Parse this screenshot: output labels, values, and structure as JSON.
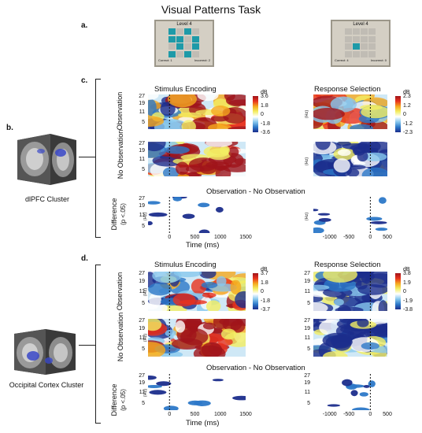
{
  "title": "Visual Patterns Task",
  "panel_labels": {
    "a": "a.",
    "b": "b.",
    "c": "c.",
    "d": "d."
  },
  "task_screens": [
    {
      "level_label": "Level 4",
      "correct_label": "Correct: 1",
      "incorrect_label": "Incorrect: 2",
      "grid": [
        [
          1,
          0,
          1,
          0
        ],
        [
          1,
          1,
          0,
          1
        ],
        [
          0,
          1,
          0,
          1
        ],
        [
          1,
          0,
          1,
          0
        ]
      ]
    },
    {
      "level_label": "Level 4",
      "correct_label": "Correct: 4",
      "incorrect_label": "Incorrect: 0",
      "grid": [
        [
          0,
          0,
          0,
          0
        ],
        [
          0,
          0,
          0,
          0
        ],
        [
          0,
          1,
          0,
          0
        ],
        [
          0,
          0,
          0,
          0
        ]
      ]
    }
  ],
  "clusters": {
    "c": "dlPFC Cluster",
    "d": "Occipital Cortex Cluster"
  },
  "row_labels": {
    "observation": "Observation",
    "no_observation": "No Observation",
    "difference": "Difference",
    "difference_sub": "(p <.05)"
  },
  "column_titles": {
    "stimulus": "Stimulus Encoding",
    "response": "Response Selection"
  },
  "difference_title": "Observation - No Observation",
  "y_axis": {
    "label": "(Hz)",
    "ticks": [
      "27",
      "19",
      "11",
      "5"
    ]
  },
  "x_axis": {
    "label": "Time (ms)",
    "left_ticks": [
      "0",
      "500",
      "1000",
      "1500"
    ],
    "right_ticks": [
      "-1000",
      "-500",
      "0",
      "500"
    ]
  },
  "colorbars": {
    "c_stim": {
      "unit": "dB",
      "ticks": [
        "3.6",
        "1.8",
        "0",
        "-1.8",
        "-3.6"
      ]
    },
    "c_resp": {
      "unit": "dB",
      "ticks": [
        "2.3",
        "1.2",
        "0",
        "-1.2",
        "-2.3"
      ]
    },
    "d_stim": {
      "unit": "dB",
      "ticks": [
        "3.7",
        "1.8",
        "0",
        "-1.8",
        "-3.7"
      ]
    },
    "d_resp": {
      "unit": "dB",
      "ticks": [
        "3.8",
        "1.9",
        "0",
        "-1.9",
        "-3.8"
      ]
    }
  },
  "colors": {
    "accent": "#1e9aa8",
    "hot": "#d62a1f",
    "cold": "#1f3f9e"
  }
}
